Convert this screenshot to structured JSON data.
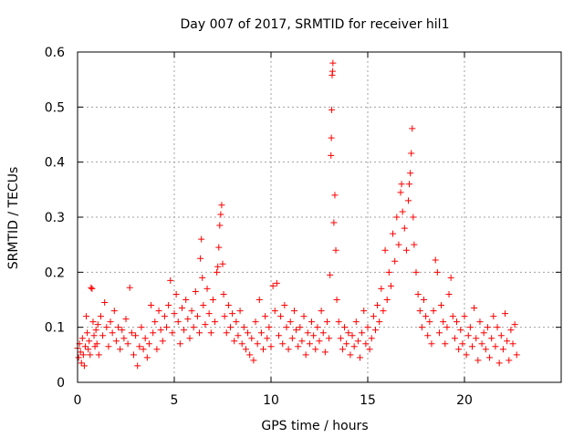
{
  "chart_data": {
    "type": "scatter",
    "title": "Day 007 of 2017, SRMTID for receiver hil1",
    "xlabel": "GPS time / hours",
    "ylabel": "SRMTID / TECUs",
    "xlim": [
      0,
      25
    ],
    "ylim": [
      0,
      0.6
    ],
    "xticks": [
      0,
      5,
      10,
      15,
      20
    ],
    "xtick_labels": [
      "0",
      "5",
      "10",
      "15",
      "20"
    ],
    "yticks": [
      0,
      0.1,
      0.2,
      0.3,
      0.4,
      0.5,
      0.6
    ],
    "ytick_labels": [
      "0",
      "0.1",
      "0.2",
      "0.3",
      "0.4",
      "0.5",
      "0.6"
    ],
    "grid": true,
    "marker": "+",
    "color": "#ff0000",
    "series": [
      {
        "name": "SRMTID",
        "points": [
          [
            0.0,
            0.062
          ],
          [
            0.05,
            0.045
          ],
          [
            0.1,
            0.07
          ],
          [
            0.15,
            0.055
          ],
          [
            0.2,
            0.035
          ],
          [
            0.25,
            0.08
          ],
          [
            0.3,
            0.05
          ],
          [
            0.35,
            0.03
          ],
          [
            0.4,
            0.065
          ],
          [
            0.45,
            0.12
          ],
          [
            0.5,
            0.09
          ],
          [
            0.55,
            0.06
          ],
          [
            0.6,
            0.075
          ],
          [
            0.65,
            0.05
          ],
          [
            0.7,
            0.172
          ],
          [
            0.75,
            0.17
          ],
          [
            0.8,
            0.11
          ],
          [
            0.85,
            0.085
          ],
          [
            0.9,
            0.065
          ],
          [
            0.95,
            0.095
          ],
          [
            1.0,
            0.07
          ],
          [
            1.05,
            0.105
          ],
          [
            1.1,
            0.05
          ],
          [
            1.2,
            0.12
          ],
          [
            1.3,
            0.085
          ],
          [
            1.4,
            0.145
          ],
          [
            1.5,
            0.1
          ],
          [
            1.6,
            0.065
          ],
          [
            1.7,
            0.11
          ],
          [
            1.8,
            0.09
          ],
          [
            1.9,
            0.13
          ],
          [
            2.0,
            0.075
          ],
          [
            2.1,
            0.1
          ],
          [
            2.2,
            0.06
          ],
          [
            2.3,
            0.095
          ],
          [
            2.4,
            0.08
          ],
          [
            2.5,
            0.115
          ],
          [
            2.6,
            0.07
          ],
          [
            2.7,
            0.172
          ],
          [
            2.8,
            0.09
          ],
          [
            2.9,
            0.05
          ],
          [
            3.0,
            0.085
          ],
          [
            3.1,
            0.03
          ],
          [
            3.2,
            0.065
          ],
          [
            3.3,
            0.1
          ],
          [
            3.4,
            0.06
          ],
          [
            3.5,
            0.08
          ],
          [
            3.6,
            0.045
          ],
          [
            3.7,
            0.07
          ],
          [
            3.8,
            0.14
          ],
          [
            3.9,
            0.09
          ],
          [
            4.0,
            0.11
          ],
          [
            4.1,
            0.06
          ],
          [
            4.2,
            0.13
          ],
          [
            4.3,
            0.095
          ],
          [
            4.4,
            0.075
          ],
          [
            4.5,
            0.12
          ],
          [
            4.6,
            0.1
          ],
          [
            4.7,
            0.14
          ],
          [
            4.8,
            0.185
          ],
          [
            4.9,
            0.09
          ],
          [
            5.0,
            0.125
          ],
          [
            5.1,
            0.16
          ],
          [
            5.2,
            0.11
          ],
          [
            5.3,
            0.07
          ],
          [
            5.4,
            0.135
          ],
          [
            5.5,
            0.095
          ],
          [
            5.6,
            0.15
          ],
          [
            5.7,
            0.115
          ],
          [
            5.8,
            0.08
          ],
          [
            5.9,
            0.13
          ],
          [
            6.0,
            0.1
          ],
          [
            6.1,
            0.165
          ],
          [
            6.2,
            0.12
          ],
          [
            6.3,
            0.09
          ],
          [
            6.35,
            0.225
          ],
          [
            6.4,
            0.26
          ],
          [
            6.45,
            0.19
          ],
          [
            6.5,
            0.14
          ],
          [
            6.6,
            0.105
          ],
          [
            6.7,
            0.17
          ],
          [
            6.8,
            0.125
          ],
          [
            6.9,
            0.09
          ],
          [
            7.0,
            0.15
          ],
          [
            7.1,
            0.11
          ],
          [
            7.2,
            0.2
          ],
          [
            7.25,
            0.21
          ],
          [
            7.3,
            0.245
          ],
          [
            7.35,
            0.285
          ],
          [
            7.4,
            0.305
          ],
          [
            7.45,
            0.322
          ],
          [
            7.5,
            0.215
          ],
          [
            7.55,
            0.16
          ],
          [
            7.6,
            0.12
          ],
          [
            7.7,
            0.09
          ],
          [
            7.8,
            0.14
          ],
          [
            7.9,
            0.1
          ],
          [
            8.0,
            0.125
          ],
          [
            8.1,
            0.075
          ],
          [
            8.2,
            0.11
          ],
          [
            8.3,
            0.085
          ],
          [
            8.4,
            0.13
          ],
          [
            8.5,
            0.07
          ],
          [
            8.6,
            0.1
          ],
          [
            8.7,
            0.06
          ],
          [
            8.8,
            0.09
          ],
          [
            8.9,
            0.05
          ],
          [
            9.0,
            0.08
          ],
          [
            9.1,
            0.04
          ],
          [
            9.2,
            0.11
          ],
          [
            9.3,
            0.07
          ],
          [
            9.4,
            0.15
          ],
          [
            9.5,
            0.09
          ],
          [
            9.6,
            0.06
          ],
          [
            9.7,
            0.12
          ],
          [
            9.8,
            0.08
          ],
          [
            9.9,
            0.1
          ],
          [
            10.0,
            0.065
          ],
          [
            10.1,
            0.175
          ],
          [
            10.2,
            0.13
          ],
          [
            10.3,
            0.18
          ],
          [
            10.4,
            0.085
          ],
          [
            10.5,
            0.12
          ],
          [
            10.6,
            0.07
          ],
          [
            10.7,
            0.14
          ],
          [
            10.8,
            0.1
          ],
          [
            10.9,
            0.06
          ],
          [
            11.0,
            0.11
          ],
          [
            11.1,
            0.08
          ],
          [
            11.2,
            0.13
          ],
          [
            11.3,
            0.095
          ],
          [
            11.4,
            0.065
          ],
          [
            11.5,
            0.1
          ],
          [
            11.6,
            0.075
          ],
          [
            11.7,
            0.12
          ],
          [
            11.8,
            0.05
          ],
          [
            11.9,
            0.09
          ],
          [
            12.0,
            0.07
          ],
          [
            12.1,
            0.11
          ],
          [
            12.2,
            0.085
          ],
          [
            12.3,
            0.06
          ],
          [
            12.4,
            0.1
          ],
          [
            12.5,
            0.075
          ],
          [
            12.6,
            0.13
          ],
          [
            12.7,
            0.09
          ],
          [
            12.8,
            0.055
          ],
          [
            12.9,
            0.11
          ],
          [
            13.0,
            0.08
          ],
          [
            13.05,
            0.195
          ],
          [
            13.1,
            0.412
          ],
          [
            13.12,
            0.444
          ],
          [
            13.14,
            0.495
          ],
          [
            13.16,
            0.558
          ],
          [
            13.18,
            0.565
          ],
          [
            13.2,
            0.58
          ],
          [
            13.25,
            0.29
          ],
          [
            13.3,
            0.34
          ],
          [
            13.35,
            0.24
          ],
          [
            13.4,
            0.15
          ],
          [
            13.5,
            0.11
          ],
          [
            13.6,
            0.08
          ],
          [
            13.7,
            0.06
          ],
          [
            13.8,
            0.1
          ],
          [
            13.9,
            0.07
          ],
          [
            14.0,
            0.09
          ],
          [
            14.1,
            0.05
          ],
          [
            14.2,
            0.085
          ],
          [
            14.3,
            0.065
          ],
          [
            14.4,
            0.11
          ],
          [
            14.5,
            0.075
          ],
          [
            14.6,
            0.045
          ],
          [
            14.7,
            0.09
          ],
          [
            14.8,
            0.13
          ],
          [
            14.9,
            0.07
          ],
          [
            15.0,
            0.1
          ],
          [
            15.1,
            0.06
          ],
          [
            15.2,
            0.08
          ],
          [
            15.3,
            0.12
          ],
          [
            15.4,
            0.095
          ],
          [
            15.5,
            0.14
          ],
          [
            15.6,
            0.11
          ],
          [
            15.7,
            0.17
          ],
          [
            15.8,
            0.13
          ],
          [
            15.9,
            0.24
          ],
          [
            16.0,
            0.15
          ],
          [
            16.1,
            0.2
          ],
          [
            16.2,
            0.175
          ],
          [
            16.3,
            0.27
          ],
          [
            16.4,
            0.22
          ],
          [
            16.5,
            0.3
          ],
          [
            16.6,
            0.25
          ],
          [
            16.7,
            0.345
          ],
          [
            16.75,
            0.36
          ],
          [
            16.8,
            0.31
          ],
          [
            16.9,
            0.28
          ],
          [
            17.0,
            0.24
          ],
          [
            17.1,
            0.33
          ],
          [
            17.15,
            0.36
          ],
          [
            17.2,
            0.38
          ],
          [
            17.25,
            0.416
          ],
          [
            17.3,
            0.461
          ],
          [
            17.35,
            0.3
          ],
          [
            17.4,
            0.25
          ],
          [
            17.5,
            0.2
          ],
          [
            17.6,
            0.16
          ],
          [
            17.7,
            0.13
          ],
          [
            17.8,
            0.1
          ],
          [
            17.9,
            0.15
          ],
          [
            18.0,
            0.12
          ],
          [
            18.1,
            0.085
          ],
          [
            18.2,
            0.11
          ],
          [
            18.3,
            0.07
          ],
          [
            18.4,
            0.13
          ],
          [
            18.5,
            0.222
          ],
          [
            18.6,
            0.2
          ],
          [
            18.7,
            0.09
          ],
          [
            18.8,
            0.14
          ],
          [
            18.9,
            0.11
          ],
          [
            19.0,
            0.07
          ],
          [
            19.1,
            0.1
          ],
          [
            19.2,
            0.16
          ],
          [
            19.3,
            0.19
          ],
          [
            19.4,
            0.12
          ],
          [
            19.5,
            0.08
          ],
          [
            19.6,
            0.11
          ],
          [
            19.7,
            0.06
          ],
          [
            19.8,
            0.095
          ],
          [
            19.9,
            0.07
          ],
          [
            20.0,
            0.12
          ],
          [
            20.1,
            0.05
          ],
          [
            20.2,
            0.085
          ],
          [
            20.3,
            0.1
          ],
          [
            20.4,
            0.065
          ],
          [
            20.5,
            0.135
          ],
          [
            20.6,
            0.08
          ],
          [
            20.7,
            0.04
          ],
          [
            20.8,
            0.11
          ],
          [
            20.9,
            0.07
          ],
          [
            21.0,
            0.09
          ],
          [
            21.1,
            0.06
          ],
          [
            21.2,
            0.1
          ],
          [
            21.3,
            0.045
          ],
          [
            21.4,
            0.08
          ],
          [
            21.5,
            0.12
          ],
          [
            21.6,
            0.065
          ],
          [
            21.7,
            0.1
          ],
          [
            21.8,
            0.035
          ],
          [
            21.9,
            0.085
          ],
          [
            22.0,
            0.06
          ],
          [
            22.1,
            0.125
          ],
          [
            22.2,
            0.075
          ],
          [
            22.3,
            0.04
          ],
          [
            22.4,
            0.095
          ],
          [
            22.5,
            0.07
          ],
          [
            22.6,
            0.105
          ],
          [
            22.7,
            0.05
          ]
        ]
      }
    ]
  }
}
